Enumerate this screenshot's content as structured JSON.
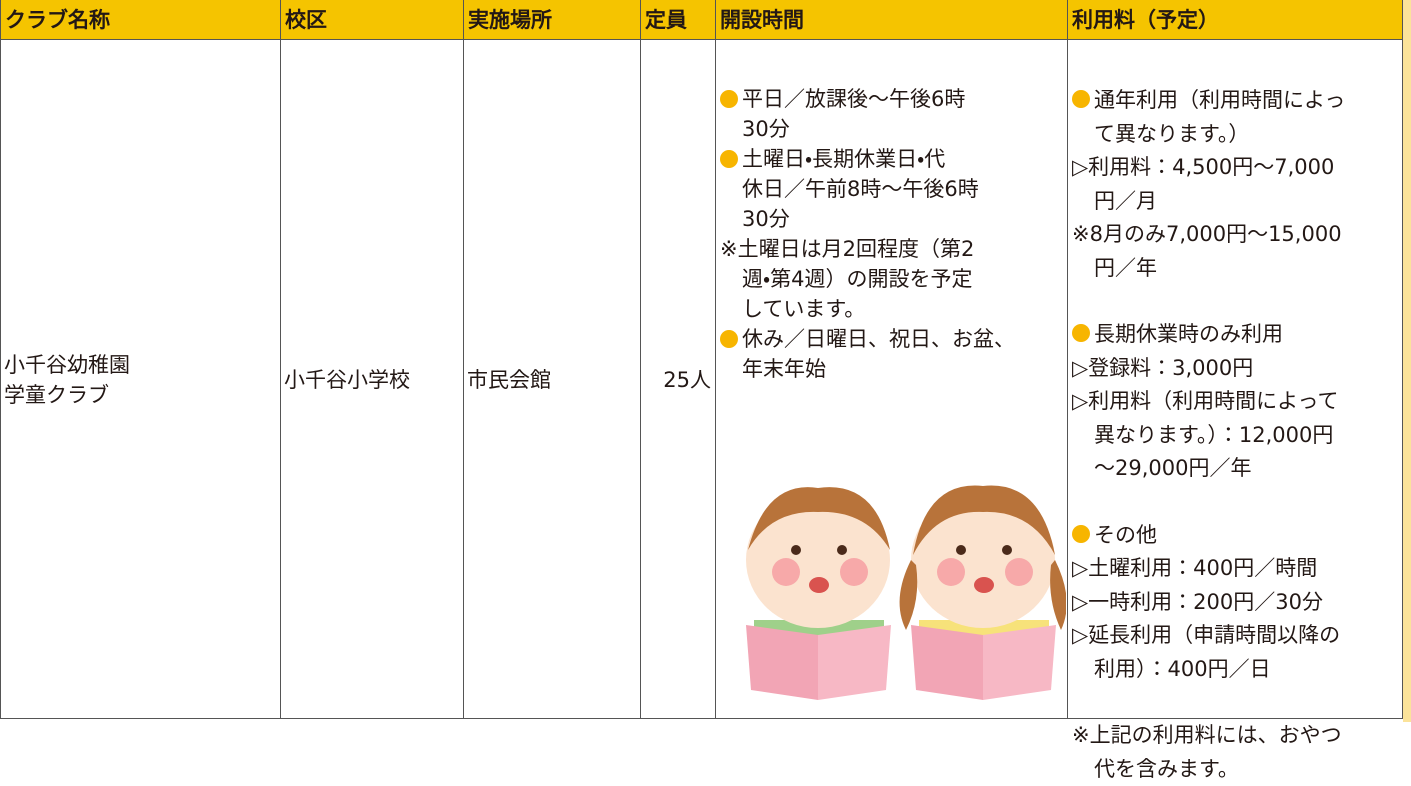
{
  "table": {
    "headers": [
      "クラブ名称",
      "校区",
      "実施場所",
      "定員",
      "開設時間",
      "利用料（予定）"
    ],
    "club_name": [
      "小千谷幼稚園",
      "学童クラブ"
    ],
    "school_district": "小千谷小学校",
    "venue": "市民会館",
    "capacity": "25人",
    "hours": [
      {
        "bullet": true,
        "lines": [
          "平日／放課後～午後6時",
          "30分"
        ]
      },
      {
        "bullet": true,
        "lines": [
          "土曜日・長期休業日・代",
          "休日／午前8時～午後6時",
          "30分"
        ]
      },
      {
        "bullet": false,
        "lines": [
          "※土曜日は月2回程度（第2",
          "週・第4週）の開設を予定",
          "しています。"
        ]
      },
      {
        "bullet": true,
        "lines": [
          "休み／日曜日、祝日、お盆、",
          "年末年始"
        ]
      }
    ],
    "fees": [
      [
        {
          "bullet": true,
          "lines": [
            "通年利用（利用時間によっ",
            "て異なります。）"
          ]
        },
        {
          "bullet": false,
          "lines": [
            "▷利用料：4,500円～7,000",
            "円／月"
          ]
        },
        {
          "bullet": false,
          "lines": [
            "※8月のみ7,000円～15,000",
            "円／年"
          ]
        }
      ],
      [
        {
          "bullet": true,
          "lines": [
            "長期休業時のみ利用"
          ]
        },
        {
          "bullet": false,
          "lines": [
            "▷登録料：3,000円"
          ]
        },
        {
          "bullet": false,
          "lines": [
            "▷利用料（利用時間によって",
            "異なります。）：12,000円",
            "～29,000円／年"
          ]
        }
      ],
      [
        {
          "bullet": true,
          "lines": [
            "その他"
          ]
        },
        {
          "bullet": false,
          "lines": [
            "▷土曜利用：400円／時間"
          ]
        },
        {
          "bullet": false,
          "lines": [
            "▷一時利用：200円／30分"
          ]
        },
        {
          "bullet": false,
          "lines": [
            "▷延長利用（申請時間以降の",
            "利用）：400円／日"
          ]
        }
      ],
      [
        {
          "bullet": false,
          "lines": [
            "※上記の利用料には、おやつ",
            "代を含みます。"
          ]
        }
      ]
    ]
  }
}
